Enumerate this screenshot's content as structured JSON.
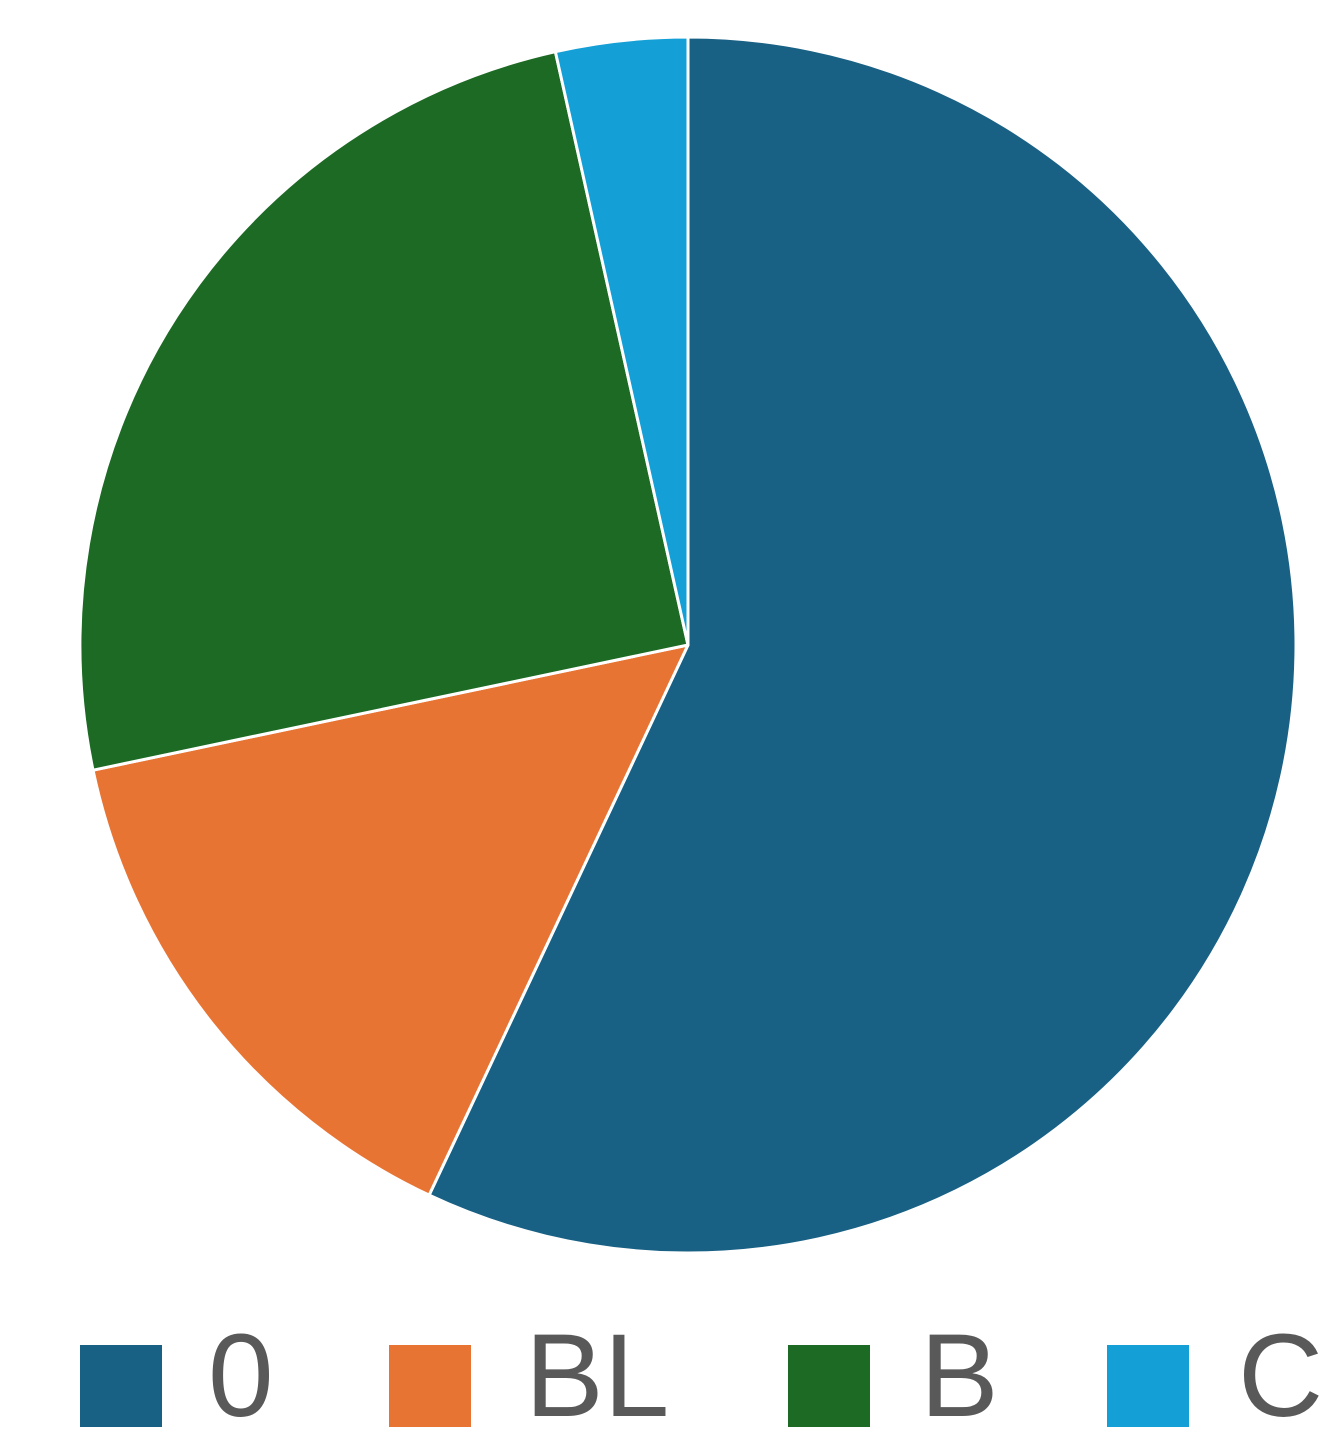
{
  "chart_data": {
    "type": "pie",
    "categories": [
      "0",
      "BL",
      "B",
      "C"
    ],
    "values": [
      57.0,
      14.7,
      24.8,
      3.5
    ],
    "colors": [
      "#186084",
      "#E87434",
      "#1C6A24",
      "#149FD7"
    ],
    "legend_position": "bottom",
    "start_angle": "12 o'clock",
    "direction": "clockwise"
  }
}
